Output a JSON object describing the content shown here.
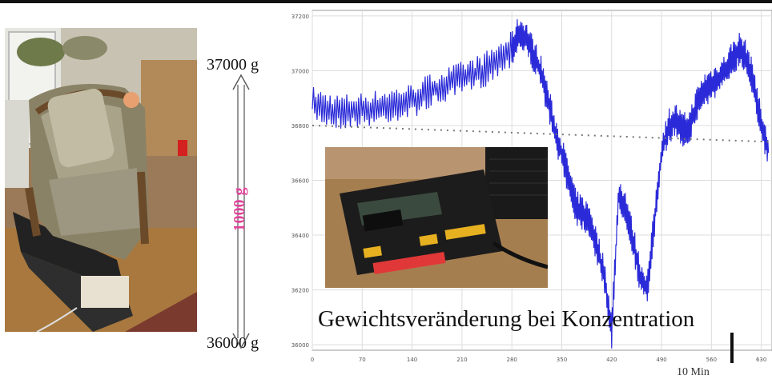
{
  "labels": {
    "top_weight": "37000 g",
    "bottom_weight": "36000 g",
    "difference": "1000 g",
    "caption": "Gewichtsveränderung bei Konzentration",
    "bottom_partial": "10 Min"
  },
  "colors": {
    "series": "#2a2ad8",
    "trend": "#777777",
    "difference_label": "#e0449a"
  },
  "chart_data": {
    "type": "line",
    "xticks": [
      "0",
      "70",
      "140",
      "210",
      "280",
      "350",
      "420",
      "490",
      "560",
      "630"
    ],
    "yticks": [
      "37200",
      "37000",
      "36800",
      "36600",
      "36400",
      "36200",
      "36000"
    ],
    "xlim": [
      0,
      645
    ],
    "ylim": [
      35980,
      37220
    ],
    "grid": true,
    "series": [
      {
        "x": [
          0,
          20,
          40,
          60,
          80,
          100,
          120,
          140,
          160,
          180,
          200,
          220,
          240,
          260,
          280,
          290,
          300,
          310,
          320,
          330,
          340,
          350,
          360,
          370,
          380,
          390,
          400,
          410,
          420,
          430,
          440,
          450,
          460,
          470,
          480,
          490,
          500,
          510,
          520,
          530,
          540,
          550,
          560,
          570,
          580,
          590,
          600,
          610,
          620,
          630,
          640
        ],
        "y": [
          36880,
          36860,
          36850,
          36855,
          36860,
          36870,
          36880,
          36890,
          36920,
          36940,
          36960,
          36980,
          37000,
          37040,
          37080,
          37140,
          37120,
          37060,
          37000,
          36900,
          36780,
          36700,
          36600,
          36500,
          36480,
          36450,
          36350,
          36250,
          36050,
          36550,
          36500,
          36380,
          36250,
          36200,
          36450,
          36700,
          36800,
          36820,
          36780,
          36800,
          36880,
          36930,
          36950,
          36970,
          37000,
          37050,
          37080,
          37040,
          36950,
          36800,
          36700
        ]
      },
      {
        "name": "trend",
        "x": [
          0,
          645
        ],
        "y": [
          36800,
          36740
        ]
      }
    ]
  }
}
